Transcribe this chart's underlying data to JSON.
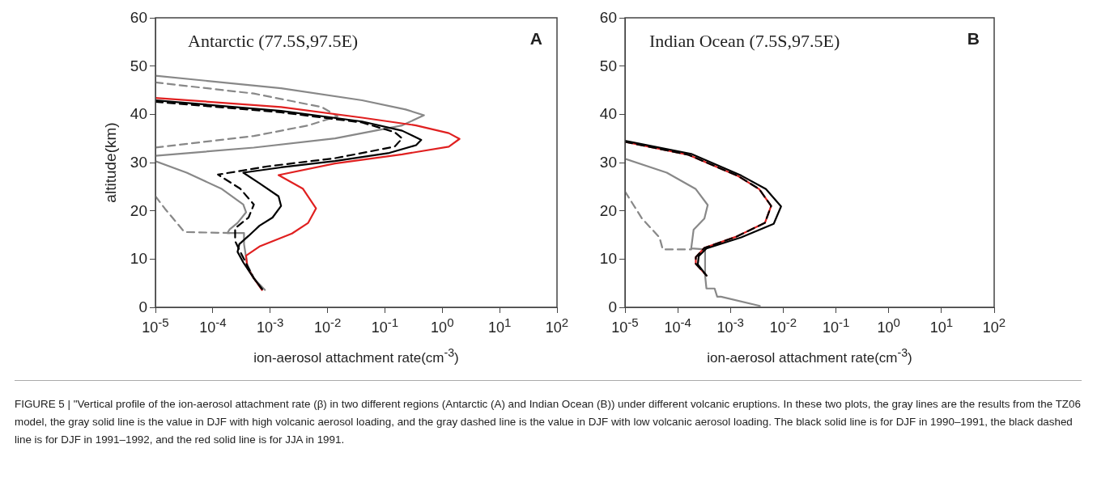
{
  "chart_data": [
    {
      "type": "line",
      "ylabel": "altitude(km)",
      "xlabel": "ion-aerosol attachment rate(cm$^{-3}$)",
      "log": "x",
      "grid": false,
      "legend": false,
      "marker": "none",
      "xlim": [
        1e-05,
        100
      ],
      "xticks": [
        {
          "value": 1e-05,
          "label": "10$^{-5}$"
        },
        {
          "value": 0.0001,
          "label": "10$^{-4}$"
        },
        {
          "value": 0.001,
          "label": "10$^{-3}$"
        },
        {
          "value": 0.01,
          "label": "10$^{-2}$"
        },
        {
          "value": 0.1,
          "label": "10$^{-1}$"
        },
        {
          "value": 1,
          "label": "10$^{0}$"
        },
        {
          "value": 10,
          "label": "10$^{1}$"
        },
        {
          "value": 100,
          "label": "10$^{2}$"
        }
      ],
      "ylim": [
        0,
        60
      ],
      "yticks": [
        0,
        10,
        20,
        30,
        40,
        50,
        60
      ],
      "annotations": [
        "Antarctic (77.5S,97.5E)",
        "A",
        "FIGURE 5 | \"Vertical profile of the ion-aerosol attachment rate (β) in two different regions (Antarctic (A) and Indian Ocean (B)) under different volcanic eruptions. In these two plots, the gray lines are the results from the TZ06 model, the gray solid line is the value in DJF with high volcanic aerosol loading, and the gray dashed line is the value in DJF with low volcanic aerosol loading. The black solid line is for DJF in 1990–1991, the black dashed line is for DJF in 1991–1992, and the red solid line is for JJA in 1991."
      ],
      "series": [
        {
          "color": "#888888",
          "line_style": "solid",
          "x": [
            1e-05,
            0.00155,
            0.04,
            0.23,
            0.48,
            0.2,
            0.0135,
            0.00052,
            1e-05,
            null,
            1e-05,
            3.5e-05,
            0.00014,
            0.00034,
            0.00038,
            0.00027,
            0.000195,
            0.00018,
            0.00035,
            0.00035,
            0.0004,
            0.00052,
            0.00081
          ],
          "values": [
            48.0,
            45.4,
            42.9,
            41.0,
            39.8,
            37.7,
            35.0,
            33.1,
            31.4,
            null,
            30.3,
            27.9,
            24.6,
            21.3,
            19.7,
            17.5,
            16.1,
            15.4,
            15.4,
            13.1,
            8.7,
            6.0,
            3.6
          ]
        },
        {
          "color": "#888888",
          "line_style": "dashed",
          "x": [
            1e-05,
            0.00052,
            0.0079,
            0.015,
            0.0046,
            0.00052,
            1e-05,
            null,
            1e-05,
            1.45e-05,
            3.2e-05,
            0.000195
          ],
          "values": [
            46.6,
            44.3,
            41.5,
            39.6,
            37.7,
            35.5,
            33.1,
            null,
            23.0,
            20.5,
            15.6,
            15.4
          ]
        },
        {
          "color": "#e02020",
          "line_style": "solid",
          "x": [
            1e-05,
            0.00155,
            0.04,
            0.35,
            1.3,
            2.0,
            1.3,
            0.2,
            0.0135,
            0.0014,
            0.0037,
            0.0063,
            0.0046,
            0.0024,
            0.00065,
            0.00038,
            0.0004,
            0.00052,
            0.00072
          ],
          "values": [
            43.4,
            41.5,
            39.3,
            37.7,
            36.1,
            34.9,
            33.3,
            31.7,
            29.8,
            27.4,
            24.6,
            20.5,
            17.5,
            15.3,
            12.6,
            10.7,
            8.2,
            6.0,
            3.6
          ]
        },
        {
          "color": "#000000",
          "line_style": "solid",
          "x": [
            1e-05,
            0.00155,
            0.04,
            0.2,
            0.43,
            0.35,
            0.12,
            0.0135,
            0.00155,
            0.00034,
            0.00065,
            0.0014,
            0.00155,
            0.0011,
            0.00065,
            0.00055,
            0.00042,
            0.00029,
            0.00027,
            0.00034,
            0.00052,
            0.00072
          ],
          "values": [
            42.9,
            40.7,
            38.5,
            36.6,
            34.7,
            33.6,
            32.0,
            30.3,
            29.0,
            27.9,
            25.7,
            23.0,
            21.0,
            18.6,
            16.9,
            16.1,
            14.8,
            13.1,
            11.5,
            9.3,
            6.0,
            3.8
          ]
        },
        {
          "color": "#000000",
          "line_style": "dashed",
          "x": [
            1e-05,
            0.00155,
            0.04,
            0.148,
            0.2,
            0.148,
            0.0135,
            0.00089,
            0.000123,
            0.0003,
            0.00052,
            0.00042,
            0.000245,
            0.000245,
            0.00032,
            0.00052,
            0.00072
          ],
          "values": [
            42.6,
            40.4,
            38.3,
            36.3,
            35.0,
            33.3,
            30.9,
            29.2,
            27.5,
            24.6,
            21.3,
            18.6,
            16.4,
            13.7,
            10.9,
            6.0,
            3.8
          ]
        }
      ]
    },
    {
      "type": "line",
      "xlabel": "ion-aerosol attachment rate(cm$^{-3}$)",
      "log": "x",
      "grid": false,
      "legend": false,
      "marker": "none",
      "xlim": [
        1e-05,
        100
      ],
      "xticks": [
        {
          "value": 1e-05,
          "label": "10$^{-5}$"
        },
        {
          "value": 0.0001,
          "label": "10$^{-4}$"
        },
        {
          "value": 0.001,
          "label": "10$^{-3}$"
        },
        {
          "value": 0.01,
          "label": "10$^{-2}$"
        },
        {
          "value": 0.1,
          "label": "10$^{-1}$"
        },
        {
          "value": 1,
          "label": "10$^{0}$"
        },
        {
          "value": 10,
          "label": "10$^{1}$"
        },
        {
          "value": 100,
          "label": "10$^{2}$"
        }
      ],
      "ylim": [
        0,
        60
      ],
      "yticks": [
        0,
        10,
        20,
        30,
        40,
        50,
        60
      ],
      "annotations": [
        "Indian Ocean (7.5S,97.5E)",
        "B"
      ],
      "series": [
        {
          "color": "#888888",
          "line_style": "solid",
          "x": [
            1e-05,
            6.2e-05,
            0.00022,
            0.00037,
            0.00032,
            0.0002,
            0.00018,
            0.00033,
            0.00033,
            0.00035,
            0.0005,
            0.00056,
            0.00066,
            0.0036
          ],
          "values": [
            30.8,
            27.9,
            24.5,
            21.2,
            18.4,
            16.1,
            12.2,
            12.0,
            6.6,
            3.9,
            3.9,
            2.2,
            2.2,
            0.3
          ]
        },
        {
          "color": "#888888",
          "line_style": "dashed",
          "x": [
            1e-05,
            2.1e-05,
            4.5e-05,
            5.2e-05,
            0.00018
          ],
          "values": [
            24.0,
            18.4,
            14.5,
            12.0,
            12.0
          ]
        },
        {
          "color": "#e02020",
          "line_style": "solid",
          "x": [
            1e-05,
            0.00016,
            0.0014,
            0.0035,
            0.0059,
            0.0045,
            0.00126,
            0.00032,
            0.00022,
            0.00022,
            0.00035
          ],
          "values": [
            34.3,
            31.6,
            27.2,
            24.5,
            21.0,
            17.5,
            14.6,
            12.3,
            10.4,
            9.0,
            6.6
          ]
        },
        {
          "color": "#000000",
          "line_style": "solid",
          "x": [
            1e-05,
            0.00018,
            0.0016,
            0.0047,
            0.0091,
            0.0066,
            0.0016,
            0.00035,
            0.00025,
            0.00024,
            0.00035
          ],
          "values": [
            34.5,
            31.8,
            27.3,
            24.5,
            20.9,
            17.3,
            14.5,
            12.2,
            10.6,
            8.9,
            6.6
          ]
        },
        {
          "color": "#000000",
          "line_style": "dashed",
          "x": [
            1e-05,
            0.00016,
            0.0014,
            0.0035,
            0.0059,
            0.0045,
            0.00126,
            0.00032,
            0.00022,
            0.00022,
            0.00035
          ],
          "values": [
            34.3,
            31.6,
            27.2,
            24.5,
            21.0,
            17.5,
            14.6,
            12.3,
            10.4,
            9.0,
            6.6
          ]
        }
      ]
    }
  ]
}
